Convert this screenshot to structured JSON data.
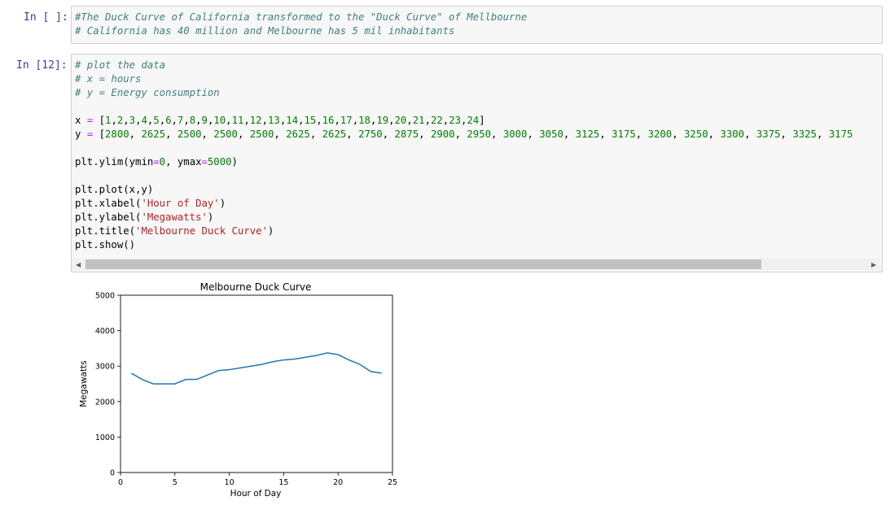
{
  "cells": [
    {
      "prompt": "In [ ]:",
      "lines": [
        [
          {
            "t": "#The Duck Curve of California transformed to the \"Duck Curve\" of Mellbourne",
            "c": "cm"
          }
        ],
        [
          {
            "t": "# California has 40 million and Melbourne has 5 mil inhabitants",
            "c": "cm"
          }
        ]
      ]
    },
    {
      "prompt": "In [12]:",
      "lines": [
        [
          {
            "t": "# plot the data",
            "c": "cm"
          }
        ],
        [
          {
            "t": "# x = hours",
            "c": "cm"
          }
        ],
        [
          {
            "t": "# y = Energy consumption",
            "c": "cm"
          }
        ],
        [],
        [
          {
            "t": "x ",
            "c": ""
          },
          {
            "t": "=",
            "c": "op"
          },
          {
            "t": " [",
            "c": ""
          },
          {
            "t": "1",
            "c": "nm"
          },
          {
            "t": ",",
            "c": ""
          },
          {
            "t": "2",
            "c": "nm"
          },
          {
            "t": ",",
            "c": ""
          },
          {
            "t": "3",
            "c": "nm"
          },
          {
            "t": ",",
            "c": ""
          },
          {
            "t": "4",
            "c": "nm"
          },
          {
            "t": ",",
            "c": ""
          },
          {
            "t": "5",
            "c": "nm"
          },
          {
            "t": ",",
            "c": ""
          },
          {
            "t": "6",
            "c": "nm"
          },
          {
            "t": ",",
            "c": ""
          },
          {
            "t": "7",
            "c": "nm"
          },
          {
            "t": ",",
            "c": ""
          },
          {
            "t": "8",
            "c": "nm"
          },
          {
            "t": ",",
            "c": ""
          },
          {
            "t": "9",
            "c": "nm"
          },
          {
            "t": ",",
            "c": ""
          },
          {
            "t": "10",
            "c": "nm"
          },
          {
            "t": ",",
            "c": ""
          },
          {
            "t": "11",
            "c": "nm"
          },
          {
            "t": ",",
            "c": ""
          },
          {
            "t": "12",
            "c": "nm"
          },
          {
            "t": ",",
            "c": ""
          },
          {
            "t": "13",
            "c": "nm"
          },
          {
            "t": ",",
            "c": ""
          },
          {
            "t": "14",
            "c": "nm"
          },
          {
            "t": ",",
            "c": ""
          },
          {
            "t": "15",
            "c": "nm"
          },
          {
            "t": ",",
            "c": ""
          },
          {
            "t": "16",
            "c": "nm"
          },
          {
            "t": ",",
            "c": ""
          },
          {
            "t": "17",
            "c": "nm"
          },
          {
            "t": ",",
            "c": ""
          },
          {
            "t": "18",
            "c": "nm"
          },
          {
            "t": ",",
            "c": ""
          },
          {
            "t": "19",
            "c": "nm"
          },
          {
            "t": ",",
            "c": ""
          },
          {
            "t": "20",
            "c": "nm"
          },
          {
            "t": ",",
            "c": ""
          },
          {
            "t": "21",
            "c": "nm"
          },
          {
            "t": ",",
            "c": ""
          },
          {
            "t": "22",
            "c": "nm"
          },
          {
            "t": ",",
            "c": ""
          },
          {
            "t": "23",
            "c": "nm"
          },
          {
            "t": ",",
            "c": ""
          },
          {
            "t": "24",
            "c": "nm"
          },
          {
            "t": "]",
            "c": ""
          }
        ],
        [
          {
            "t": "y ",
            "c": ""
          },
          {
            "t": "=",
            "c": "op"
          },
          {
            "t": " [",
            "c": ""
          },
          {
            "t": "2800",
            "c": "nm"
          },
          {
            "t": ", ",
            "c": ""
          },
          {
            "t": "2625",
            "c": "nm"
          },
          {
            "t": ", ",
            "c": ""
          },
          {
            "t": "2500",
            "c": "nm"
          },
          {
            "t": ", ",
            "c": ""
          },
          {
            "t": "2500",
            "c": "nm"
          },
          {
            "t": ", ",
            "c": ""
          },
          {
            "t": "2500",
            "c": "nm"
          },
          {
            "t": ", ",
            "c": ""
          },
          {
            "t": "2625",
            "c": "nm"
          },
          {
            "t": ", ",
            "c": ""
          },
          {
            "t": "2625",
            "c": "nm"
          },
          {
            "t": ", ",
            "c": ""
          },
          {
            "t": "2750",
            "c": "nm"
          },
          {
            "t": ", ",
            "c": ""
          },
          {
            "t": "2875",
            "c": "nm"
          },
          {
            "t": ", ",
            "c": ""
          },
          {
            "t": "2900",
            "c": "nm"
          },
          {
            "t": ", ",
            "c": ""
          },
          {
            "t": "2950",
            "c": "nm"
          },
          {
            "t": ", ",
            "c": ""
          },
          {
            "t": "3000",
            "c": "nm"
          },
          {
            "t": ", ",
            "c": ""
          },
          {
            "t": "3050",
            "c": "nm"
          },
          {
            "t": ", ",
            "c": ""
          },
          {
            "t": "3125",
            "c": "nm"
          },
          {
            "t": ", ",
            "c": ""
          },
          {
            "t": "3175",
            "c": "nm"
          },
          {
            "t": ", ",
            "c": ""
          },
          {
            "t": "3200",
            "c": "nm"
          },
          {
            "t": ", ",
            "c": ""
          },
          {
            "t": "3250",
            "c": "nm"
          },
          {
            "t": ", ",
            "c": ""
          },
          {
            "t": "3300",
            "c": "nm"
          },
          {
            "t": ", ",
            "c": ""
          },
          {
            "t": "3375",
            "c": "nm"
          },
          {
            "t": ", ",
            "c": ""
          },
          {
            "t": "3325",
            "c": "nm"
          },
          {
            "t": ", ",
            "c": ""
          },
          {
            "t": "3175",
            "c": "nm"
          }
        ],
        [],
        [
          {
            "t": "plt",
            "c": ""
          },
          {
            "t": ".",
            "c": ""
          },
          {
            "t": "ylim(ymin",
            "c": ""
          },
          {
            "t": "=",
            "c": "op"
          },
          {
            "t": "0",
            "c": "nm"
          },
          {
            "t": ", ymax",
            "c": ""
          },
          {
            "t": "=",
            "c": "op"
          },
          {
            "t": "5000",
            "c": "nm"
          },
          {
            "t": ")",
            "c": ""
          }
        ],
        [],
        [
          {
            "t": "plt.plot(x,y)",
            "c": ""
          }
        ],
        [
          {
            "t": "plt.xlabel(",
            "c": ""
          },
          {
            "t": "'Hour of Day'",
            "c": "st"
          },
          {
            "t": ")",
            "c": ""
          }
        ],
        [
          {
            "t": "plt.ylabel(",
            "c": ""
          },
          {
            "t": "'Megawatts'",
            "c": "st"
          },
          {
            "t": ")",
            "c": ""
          }
        ],
        [
          {
            "t": "plt.title(",
            "c": ""
          },
          {
            "t": "'Melbourne Duck Curve'",
            "c": "st"
          },
          {
            "t": ")",
            "c": ""
          }
        ],
        [
          {
            "t": "plt.show()",
            "c": ""
          }
        ]
      ]
    }
  ],
  "chart_data": {
    "type": "line",
    "title": "Melbourne Duck Curve",
    "xlabel": "Hour of Day",
    "ylabel": "Megawatts",
    "x": [
      1,
      2,
      3,
      4,
      5,
      6,
      7,
      8,
      9,
      10,
      11,
      12,
      13,
      14,
      15,
      16,
      17,
      18,
      19,
      20,
      21,
      22,
      23,
      24
    ],
    "series": [
      {
        "values": [
          2800,
          2625,
          2500,
          2500,
          2500,
          2625,
          2625,
          2750,
          2875,
          2900,
          2950,
          3000,
          3050,
          3125,
          3175,
          3200,
          3250,
          3300,
          3375,
          3325,
          3175,
          3050,
          2850,
          2800
        ]
      }
    ],
    "xlim": [
      0,
      25
    ],
    "ylim": [
      0,
      5000
    ],
    "xticks": [
      "0",
      "5",
      "10",
      "15",
      "20",
      "25"
    ],
    "yticks": [
      "0",
      "1000",
      "2000",
      "3000",
      "4000",
      "5000"
    ],
    "line_color": "#1f77b4",
    "grid": false
  }
}
